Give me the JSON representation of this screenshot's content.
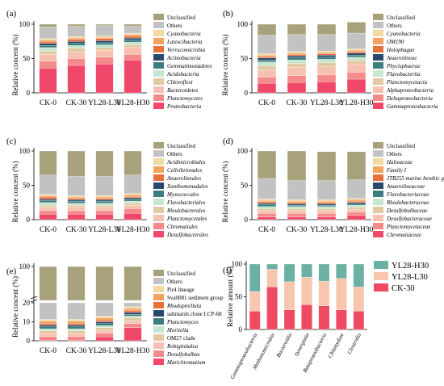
{
  "colors": {
    "Unclassified": "#a8a27c",
    "Others": "#c2c2c2",
    "c3": "#f2d9a0",
    "c4": "#f4a261",
    "c5": "#e8703a",
    "c6": "#2a4a6b",
    "c7": "#3a7e7e",
    "c8": "#c7e6cf",
    "c9": "#e2c9a2",
    "c10": "#f7c1b1",
    "c11": "#f48a8a",
    "c12": "#f0486a",
    "f_L": "#f7c6ad",
    "f_H": "#6bb0a3",
    "f_C": "#ef4a63"
  },
  "chart_data": [
    {
      "panel": "(a)",
      "type": "bar",
      "stacked": true,
      "categories": [
        "CK-0",
        "CK-30",
        "YL28-L30",
        "YL28-H30"
      ],
      "ylabel": "Relative concent (%)",
      "ylim": [
        0,
        100
      ],
      "yticks": [
        0,
        50,
        100
      ],
      "series": [
        {
          "name": "Proteobacteria",
          "values": [
            36,
            40,
            42,
            48
          ]
        },
        {
          "name": "Planctomycetes",
          "values": [
            10,
            10,
            10,
            8
          ]
        },
        {
          "name": "Bacteroidetes",
          "values": [
            10,
            10,
            10,
            10
          ]
        },
        {
          "name": "Chloroflexi",
          "values": [
            5,
            5,
            4,
            4
          ]
        },
        {
          "name": "Acidobacteria",
          "values": [
            5,
            4,
            4,
            4
          ]
        },
        {
          "name": "Gemmatimonadetes",
          "values": [
            3,
            3,
            3,
            3
          ]
        },
        {
          "name": "Actinobacteria",
          "values": [
            3,
            3,
            3,
            3
          ]
        },
        {
          "name": "Verrucomicrobia",
          "values": [
            3,
            3,
            3,
            3
          ]
        },
        {
          "name": "Latescibacteria",
          "values": [
            2,
            2,
            2,
            2
          ]
        },
        {
          "name": "Cyanobacteria",
          "values": [
            2,
            2,
            2,
            2
          ]
        },
        {
          "name": "Others",
          "values": [
            17,
            15,
            15,
            10
          ]
        },
        {
          "name": "Unclassified",
          "values": [
            4,
            3,
            2,
            3
          ]
        }
      ]
    },
    {
      "panel": "(b)",
      "type": "bar",
      "stacked": true,
      "categories": [
        "CK-0",
        "CK-30",
        "YL28-L30",
        "YL28-H30"
      ],
      "ylabel": "Relative concent (%)",
      "ylim": [
        0,
        100
      ],
      "yticks": [
        0,
        50,
        100
      ],
      "series": [
        {
          "name": "Gammaproteobacteria",
          "values": [
            14,
            15,
            16,
            20
          ]
        },
        {
          "name": "Deltaproteobacteria",
          "values": [
            9,
            10,
            10,
            10
          ]
        },
        {
          "name": "Alphaproteobacteria",
          "values": [
            10,
            12,
            12,
            12
          ]
        },
        {
          "name": "Planctomycetacia",
          "values": [
            6,
            6,
            6,
            5
          ]
        },
        {
          "name": "Flavobacteriia",
          "values": [
            6,
            5,
            5,
            5
          ]
        },
        {
          "name": "Phycisphaerae",
          "values": [
            3,
            3,
            3,
            3
          ]
        },
        {
          "name": "Anaerolineae",
          "values": [
            3,
            3,
            3,
            3
          ]
        },
        {
          "name": "Holophagae",
          "values": [
            2,
            2,
            2,
            2
          ]
        },
        {
          "name": "OM190",
          "values": [
            2,
            2,
            2,
            2
          ]
        },
        {
          "name": "Cyanobacteria",
          "values": [
            2,
            2,
            2,
            2
          ]
        },
        {
          "name": "Others",
          "values": [
            27,
            25,
            24,
            23
          ]
        },
        {
          "name": "Unclassified",
          "values": [
            16,
            15,
            15,
            16
          ]
        }
      ]
    },
    {
      "panel": "(c)",
      "type": "bar",
      "stacked": true,
      "categories": [
        "CK-0",
        "CK-30",
        "YL28-L30",
        "YL28-H30"
      ],
      "ylabel": "Relative concent (%)",
      "ylim": [
        0,
        100
      ],
      "yticks": [
        0,
        50,
        100
      ],
      "series": [
        {
          "name": "Desulfobacterales",
          "values": [
            8,
            8,
            8,
            9
          ]
        },
        {
          "name": "Chromatiales",
          "values": [
            5,
            5,
            5,
            7
          ]
        },
        {
          "name": "Planctomycetales",
          "values": [
            5,
            5,
            5,
            5
          ]
        },
        {
          "name": "Rhodobacterales",
          "values": [
            3,
            3,
            3,
            3
          ]
        },
        {
          "name": "Flavobacteriales",
          "values": [
            4,
            3,
            3,
            3
          ]
        },
        {
          "name": "Myxococcales",
          "values": [
            3,
            3,
            3,
            3
          ]
        },
        {
          "name": "Xanthomonadales",
          "values": [
            2,
            2,
            2,
            2
          ]
        },
        {
          "name": "Anaerolineales",
          "values": [
            3,
            2,
            2,
            2
          ]
        },
        {
          "name": "Cellvibrionales",
          "values": [
            2,
            2,
            2,
            2
          ]
        },
        {
          "name": "Acidimicrobiales",
          "values": [
            2,
            2,
            2,
            2
          ]
        },
        {
          "name": "Others",
          "values": [
            28,
            28,
            28,
            27
          ]
        },
        {
          "name": "Unclassified",
          "values": [
            35,
            37,
            37,
            35
          ]
        }
      ]
    },
    {
      "panel": "(d)",
      "type": "bar",
      "stacked": true,
      "categories": [
        "CK-0",
        "CK-30",
        "YL28-L30",
        "YL28-H30"
      ],
      "ylabel": "Relative concent (%)",
      "ylim": [
        0,
        100
      ],
      "yticks": [
        0,
        50,
        100
      ],
      "series": [
        {
          "name": "Chromatiaceae",
          "values": [
            4,
            4,
            4,
            6
          ]
        },
        {
          "name": "Planctomycetaceae",
          "values": [
            5,
            5,
            5,
            5
          ]
        },
        {
          "name": "Desulfobacteraceae",
          "values": [
            4,
            4,
            4,
            4
          ]
        },
        {
          "name": "Desulfobulbaceae",
          "values": [
            3,
            3,
            3,
            3
          ]
        },
        {
          "name": "Rhodobacteraceae",
          "values": [
            3,
            3,
            3,
            3
          ]
        },
        {
          "name": "Flavobacteriaceae",
          "values": [
            3,
            2,
            2,
            2
          ]
        },
        {
          "name": "Anaerolineaceae",
          "values": [
            2,
            2,
            2,
            2
          ]
        },
        {
          "name": "JTB255 marine benthic group",
          "values": [
            2,
            2,
            2,
            2
          ]
        },
        {
          "name": "Family I",
          "values": [
            2,
            2,
            2,
            2
          ]
        },
        {
          "name": "Halieaceae",
          "values": [
            2,
            2,
            2,
            2
          ]
        },
        {
          "name": "Others",
          "values": [
            30,
            28,
            28,
            27
          ]
        },
        {
          "name": "Unclassified",
          "values": [
            40,
            43,
            42,
            41
          ]
        }
      ]
    },
    {
      "panel": "(e)",
      "type": "bar",
      "stacked": true,
      "broken_axis": true,
      "categories": [
        "CK-0",
        "CK-30",
        "YL28-L30",
        "YL28-H30"
      ],
      "ylabel": "Relative concent (%)",
      "yticks": [
        0,
        10,
        20,
        100
      ],
      "series": [
        {
          "name": "Marichromatium",
          "values": [
            0.3,
            0.3,
            2.0,
            7.0
          ]
        },
        {
          "name": "Desulfobulbus",
          "values": [
            2.0,
            2.0,
            2.0,
            2.0
          ]
        },
        {
          "name": "Robiginitalea",
          "values": [
            1.5,
            1.5,
            1.5,
            1.5
          ]
        },
        {
          "name": "OM27 clade",
          "values": [
            1.5,
            1.5,
            1.5,
            1.5
          ]
        },
        {
          "name": "Moritella",
          "values": [
            1.0,
            1.0,
            1.0,
            1.0
          ]
        },
        {
          "name": "Planctomyces",
          "values": [
            1.0,
            1.0,
            1.0,
            1.0
          ]
        },
        {
          "name": "saltmarsh clone LCP-68",
          "values": [
            1.0,
            1.0,
            1.0,
            1.0
          ]
        },
        {
          "name": "Rhodopirellula",
          "values": [
            1.0,
            1.0,
            1.0,
            1.0
          ]
        },
        {
          "name": "Sva0081 sediment group",
          "values": [
            1.0,
            1.0,
            1.0,
            1.0
          ]
        },
        {
          "name": "Pir4 lineage",
          "values": [
            1.0,
            1.0,
            1.0,
            1.0
          ]
        },
        {
          "name": "Others",
          "values": [
            13.7,
            12.5,
            11.0,
            7.0
          ]
        },
        {
          "name": "Unclassified",
          "values": [
            76,
            77,
            77,
            75
          ]
        }
      ]
    },
    {
      "panel": "(f)",
      "type": "bar",
      "stacked": true,
      "categories": [
        "Gammaproteobacteria",
        "Methanomicrobia",
        "Bacteroidia",
        "Synergistia",
        "Betaproteobacteria",
        "Chlamydiae",
        "Clostridia"
      ],
      "ylabel": "Relative amount (%)",
      "ylim": [
        0,
        100
      ],
      "yticks": [
        0,
        50,
        100
      ],
      "series": [
        {
          "name": "CK-30",
          "values": [
            28,
            65,
            30,
            38,
            36,
            30,
            28
          ]
        },
        {
          "name": "YL28-L30",
          "values": [
            30,
            27,
            43,
            42,
            38,
            48,
            37
          ]
        },
        {
          "name": "YL28-H30",
          "values": [
            42,
            8,
            27,
            20,
            26,
            22,
            35
          ]
        }
      ],
      "legend": [
        "YL28-H30",
        "YL28-L30",
        "CK-30"
      ]
    }
  ]
}
